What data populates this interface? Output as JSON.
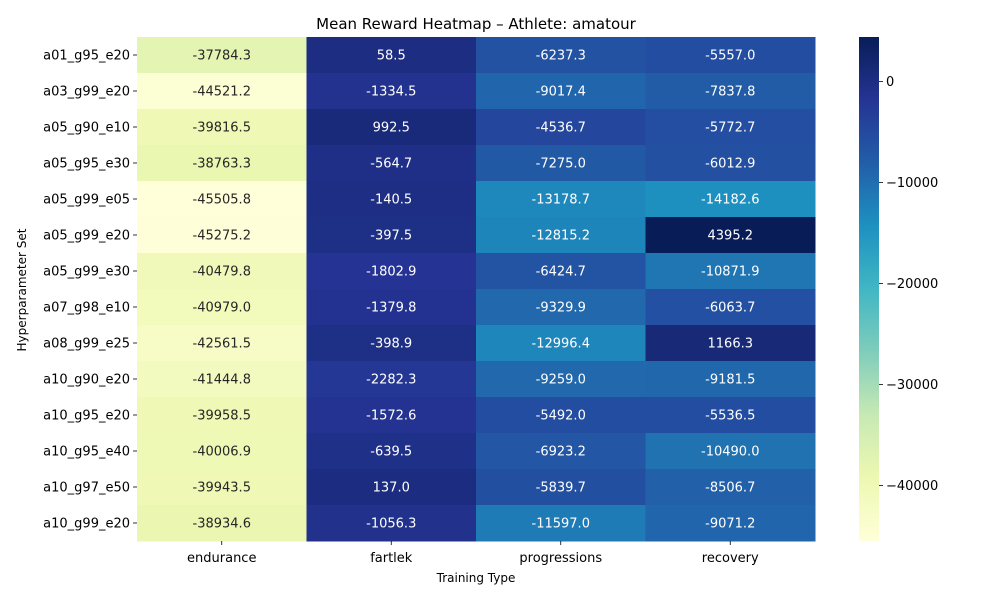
{
  "chart_data": {
    "type": "heatmap",
    "title": "Mean Reward Heatmap – Athlete: amatour",
    "xlabel": "Training Type",
    "ylabel": "Hyperparameter Set",
    "columns": [
      "endurance",
      "fartlek",
      "progressions",
      "recovery"
    ],
    "rows": [
      "a01_g95_e20",
      "a03_g99_e20",
      "a05_g90_e10",
      "a05_g95_e30",
      "a05_g99_e05",
      "a05_g99_e20",
      "a05_g99_e30",
      "a07_g98_e10",
      "a08_g99_e25",
      "a10_g90_e20",
      "a10_g95_e20",
      "a10_g95_e40",
      "a10_g97_e50",
      "a10_g99_e20"
    ],
    "values": [
      [
        "-37784.3",
        "58.5",
        "-6237.3",
        "-5557.0"
      ],
      [
        "-44521.2",
        "-1334.5",
        "-9017.4",
        "-7837.8"
      ],
      [
        "-39816.5",
        "992.5",
        "-4536.7",
        "-5772.7"
      ],
      [
        "-38763.3",
        "-564.7",
        "-7275.0",
        "-6012.9"
      ],
      [
        "-45505.8",
        "-140.5",
        "-13178.7",
        "-14182.6"
      ],
      [
        "-45275.2",
        "-397.5",
        "-12815.2",
        "4395.2"
      ],
      [
        "-40479.8",
        "-1802.9",
        "-6424.7",
        "-10871.9"
      ],
      [
        "-40979.0",
        "-1379.8",
        "-9329.9",
        "-6063.7"
      ],
      [
        "-42561.5",
        "-398.9",
        "-12996.4",
        "1166.3"
      ],
      [
        "-41444.8",
        "-2282.3",
        "-9259.0",
        "-9181.5"
      ],
      [
        "-39958.5",
        "-1572.6",
        "-5492.0",
        "-5536.5"
      ],
      [
        "-40006.9",
        "-639.5",
        "-6923.2",
        "-10490.0"
      ],
      [
        "-39943.5",
        "137.0",
        "-5839.7",
        "-8506.7"
      ],
      [
        "-38934.6",
        "-1056.3",
        "-11597.0",
        "-9071.2"
      ]
    ],
    "colorbar": {
      "ticks": [
        "0",
        "−10000",
        "−20000",
        "−30000",
        "−40000"
      ],
      "range": [
        -45505.8,
        4395.2
      ],
      "colormap": "YlGnBu"
    },
    "grid": false
  }
}
